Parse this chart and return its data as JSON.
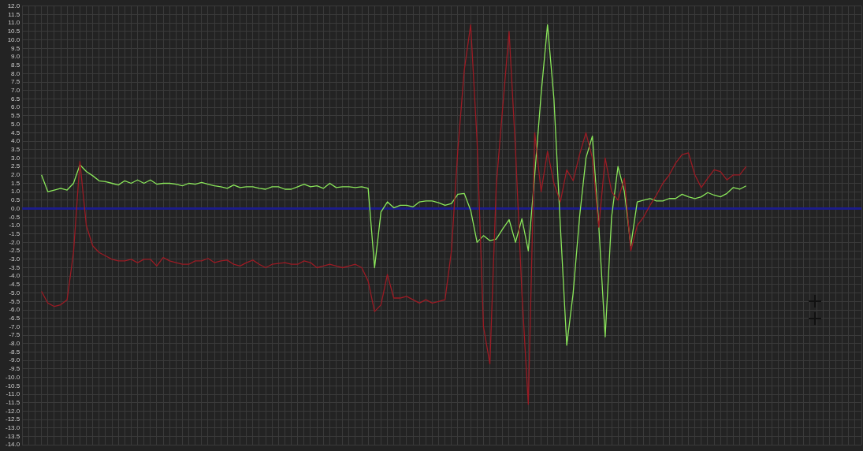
{
  "chart_data": {
    "type": "line",
    "categories": [
      null,
      null,
      null,
      null,
      null,
      null,
      null,
      null,
      null,
      null,
      null,
      null,
      null,
      null,
      null,
      null,
      null,
      null,
      null,
      null,
      null,
      null,
      null,
      null,
      null,
      null,
      null,
      null,
      null,
      null,
      null,
      null,
      null,
      null,
      null,
      null,
      null,
      null,
      null,
      null,
      null,
      null,
      null,
      null,
      null,
      null,
      null,
      null,
      null,
      null,
      null,
      null,
      null,
      null,
      null,
      null,
      null,
      null,
      null,
      null,
      null,
      null,
      null,
      null,
      null,
      null,
      null,
      null,
      null,
      null,
      null,
      null,
      null,
      null,
      null,
      null,
      null,
      null,
      null,
      null,
      null,
      null,
      null,
      null,
      null,
      null,
      null,
      null,
      null,
      null,
      null,
      null,
      null,
      null,
      null,
      null,
      null,
      null,
      null,
      null,
      null,
      null,
      null,
      null,
      null,
      null,
      null,
      null,
      null,
      null,
      null,
      null,
      null,
      null,
      null,
      null,
      null,
      null,
      null,
      null,
      null,
      null,
      null,
      null,
      null,
      null,
      null,
      null,
      null,
      null,
      null,
      null
    ],
    "series": [
      {
        "color": "#9b1b24",
        "values": [
          null,
          null,
          null,
          -4.9,
          -5.6,
          -5.8,
          -5.7,
          -5.4,
          -2.6,
          2.8,
          -1.0,
          -2.2,
          -2.6,
          -2.8,
          -3.0,
          -3.1,
          -3.1,
          -3.0,
          -3.2,
          -3.0,
          -3.0,
          -3.4,
          -2.9,
          -3.1,
          -3.2,
          -3.3,
          -3.3,
          -3.1,
          -3.1,
          -2.95,
          -3.2,
          -3.1,
          -3.05,
          -3.3,
          -3.4,
          -3.2,
          -3.05,
          -3.3,
          -3.5,
          -3.3,
          -3.25,
          -3.2,
          -3.3,
          -3.3,
          -3.1,
          -3.2,
          -3.5,
          -3.4,
          -3.3,
          -3.4,
          -3.5,
          -3.4,
          -3.3,
          -3.5,
          -4.3,
          -6.1,
          -5.7,
          -3.9,
          -5.3,
          -5.3,
          -5.2,
          -5.4,
          -5.6,
          -5.4,
          -5.6,
          -5.5,
          -5.4,
          -2.5,
          3.5,
          8.2,
          10.9,
          4.0,
          -7.0,
          -9.2,
          1.4,
          6.0,
          10.5,
          3.5,
          -5.0,
          -11.6,
          4.5,
          1.0,
          3.4,
          1.5,
          0.4,
          2.3,
          1.65,
          3.2,
          4.5,
          3.0,
          -1.1,
          3.0,
          1.0,
          0.5,
          1.8,
          -2.5,
          -1.0,
          -0.5,
          0.2,
          0.8,
          1.5,
          2.0,
          2.7,
          3.2,
          3.3,
          2.0,
          1.25,
          1.8,
          2.3,
          2.2,
          1.7,
          2.0,
          2.0,
          2.5,
          null,
          null,
          null,
          null,
          null,
          null,
          null,
          null,
          null,
          null,
          null,
          null,
          null,
          null,
          null,
          null,
          null,
          null
        ]
      },
      {
        "color": "#8ae65a",
        "values": [
          null,
          null,
          null,
          2.0,
          1.0,
          1.1,
          1.2,
          1.1,
          1.5,
          2.6,
          2.2,
          1.95,
          1.65,
          1.6,
          1.5,
          1.4,
          1.65,
          1.5,
          1.7,
          1.5,
          1.7,
          1.45,
          1.5,
          1.5,
          1.45,
          1.35,
          1.5,
          1.45,
          1.55,
          1.45,
          1.35,
          1.3,
          1.2,
          1.4,
          1.25,
          1.3,
          1.3,
          1.2,
          1.15,
          1.3,
          1.3,
          1.15,
          1.15,
          1.3,
          1.45,
          1.3,
          1.35,
          1.2,
          1.5,
          1.25,
          1.3,
          1.3,
          1.25,
          1.3,
          1.2,
          -3.5,
          -0.2,
          0.4,
          0.05,
          0.2,
          0.2,
          0.1,
          0.4,
          0.45,
          0.45,
          0.35,
          0.2,
          0.3,
          0.85,
          0.9,
          -0.1,
          -2.0,
          -1.6,
          -1.9,
          -1.8,
          -1.2,
          -0.65,
          -2.0,
          -0.6,
          -2.5,
          2.0,
          6.8,
          10.9,
          6.5,
          -1.0,
          -8.1,
          -5.0,
          -0.5,
          3.0,
          4.3,
          -1.0,
          -7.6,
          -0.5,
          2.5,
          1.0,
          -2.2,
          0.4,
          0.5,
          0.6,
          0.45,
          0.45,
          0.6,
          0.6,
          0.85,
          0.7,
          0.6,
          0.7,
          0.95,
          0.8,
          0.7,
          0.9,
          1.25,
          1.15,
          1.35,
          null,
          null,
          null,
          null,
          null,
          null,
          null,
          null,
          null,
          null,
          null,
          null,
          null,
          null,
          null,
          null,
          null,
          null
        ]
      }
    ],
    "ylim": [
      -14,
      12
    ],
    "yticks": [
      {
        "value": -14,
        "label": "-14.0"
      },
      {
        "value": -13.5,
        "label": "-13.5"
      },
      {
        "value": -13,
        "label": "-13.0"
      },
      {
        "value": -12.5,
        "label": "-12.5"
      },
      {
        "value": -12,
        "label": "-12.0"
      },
      {
        "value": -11.5,
        "label": "-11.5"
      },
      {
        "value": -11,
        "label": "-11.0"
      },
      {
        "value": -10.5,
        "label": "-10.5"
      },
      {
        "value": -10,
        "label": "-10.0"
      },
      {
        "value": -9.5,
        "label": "-9.5"
      },
      {
        "value": -9,
        "label": "-9.0"
      },
      {
        "value": -8.5,
        "label": "-8.5"
      },
      {
        "value": -8,
        "label": "-8.0"
      },
      {
        "value": -7.5,
        "label": "-7.5"
      },
      {
        "value": -7,
        "label": "-7.0"
      },
      {
        "value": -6.5,
        "label": "-6.5"
      },
      {
        "value": -6,
        "label": "-6.0"
      },
      {
        "value": -5.5,
        "label": "-5.5"
      },
      {
        "value": -5,
        "label": "-5.0"
      },
      {
        "value": -4.5,
        "label": "-4.5"
      },
      {
        "value": -4,
        "label": "-4.0"
      },
      {
        "value": -3.5,
        "label": "-3.5"
      },
      {
        "value": -3,
        "label": "-3.0"
      },
      {
        "value": -2.5,
        "label": "-2.5"
      },
      {
        "value": -2,
        "label": "-2.0"
      },
      {
        "value": -1.5,
        "label": "-1.5"
      },
      {
        "value": -1,
        "label": "-1.0"
      },
      {
        "value": -0.5,
        "label": "-0.5"
      },
      {
        "value": 0,
        "label": "0.0"
      },
      {
        "value": 0.5,
        "label": "0.5"
      },
      {
        "value": 1,
        "label": "1.0"
      },
      {
        "value": 1.5,
        "label": "1.5"
      },
      {
        "value": 2,
        "label": "2.0"
      },
      {
        "value": 2.5,
        "label": "2.5"
      },
      {
        "value": 3,
        "label": "3.0"
      },
      {
        "value": 3.5,
        "label": "3.5"
      },
      {
        "value": 4,
        "label": "4.0"
      },
      {
        "value": 4.5,
        "label": "4.5"
      },
      {
        "value": 5,
        "label": "5.0"
      },
      {
        "value": 5.5,
        "label": "5.5"
      },
      {
        "value": 6,
        "label": "6.0"
      },
      {
        "value": 6.5,
        "label": "6.5"
      },
      {
        "value": 7,
        "label": "7.0"
      },
      {
        "value": 7.5,
        "label": "7.5"
      },
      {
        "value": 8,
        "label": "8.0"
      },
      {
        "value": 8.5,
        "label": "8.5"
      },
      {
        "value": 9,
        "label": "9.0"
      },
      {
        "value": 9.5,
        "label": "9.5"
      },
      {
        "value": 10,
        "label": "10.0"
      },
      {
        "value": 10.5,
        "label": "10.5"
      },
      {
        "value": 11,
        "label": "11.0"
      },
      {
        "value": 11.5,
        "label": "11.5"
      },
      {
        "value": 12,
        "label": "12.0"
      }
    ],
    "ref_lines": [
      {
        "axis": "y",
        "value": 0,
        "color": "#1c1c8a"
      }
    ],
    "grid": true,
    "legend": false,
    "marker": "none",
    "line_style": "solid",
    "tick_labels": "y"
  }
}
